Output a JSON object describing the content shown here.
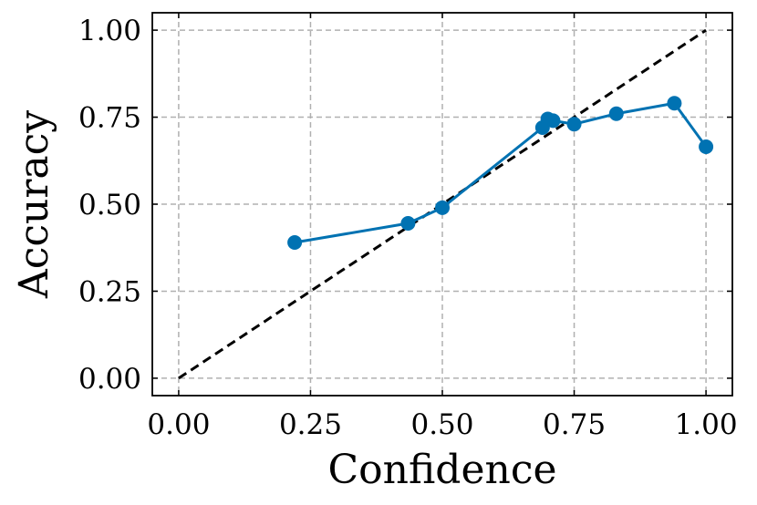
{
  "chart_data": {
    "type": "line",
    "title": "",
    "xlabel": "Confidence",
    "ylabel": "Accuracy",
    "xlim": [
      -0.05,
      1.05
    ],
    "ylim": [
      -0.05,
      1.05
    ],
    "xticks": [
      0.0,
      0.25,
      0.5,
      0.75,
      1.0
    ],
    "yticks": [
      0.0,
      0.25,
      0.5,
      0.75,
      1.0
    ],
    "xtick_labels": [
      "0.00",
      "0.25",
      "0.50",
      "0.75",
      "1.00"
    ],
    "ytick_labels": [
      "0.00",
      "0.25",
      "0.50",
      "0.75",
      "1.00"
    ],
    "grid": true,
    "series": [
      {
        "color": "#0072b2",
        "marker": "circle",
        "x": [
          0.22,
          0.435,
          0.5,
          0.69,
          0.7,
          0.71,
          0.75,
          0.83,
          0.94,
          1.0
        ],
        "y": [
          0.39,
          0.445,
          0.49,
          0.72,
          0.745,
          0.74,
          0.73,
          0.76,
          0.79,
          0.665
        ]
      }
    ],
    "reference_line": {
      "style": "dashed",
      "color": "#000000",
      "x": [
        0.0,
        1.0
      ],
      "y": [
        0.0,
        1.0
      ]
    }
  }
}
